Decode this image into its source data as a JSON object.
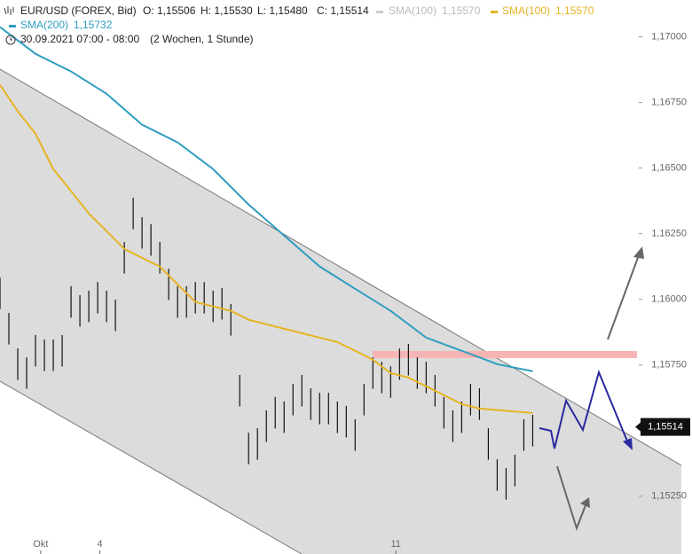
{
  "header": {
    "symbol": "EUR/USD (FOREX, Bid)",
    "ohlc": [
      "O: 1,15506",
      "H: 1,15530",
      "L: 1,15480",
      "C: 1,15514"
    ],
    "inactive_legend": {
      "name": "SMA(100)",
      "value": "1,15570"
    },
    "period": "30.09.2021 07:00 - 08:00",
    "span": "(2 Wochen, 1 Stunde)"
  },
  "chart_data": {
    "type": "ohlc",
    "x": [
      -16.5,
      -12.9,
      -9.3,
      -5.7,
      -2.1,
      1.5,
      5.1,
      8.7,
      12.3,
      15.9,
      19.5,
      23.1,
      26.7,
      30.3,
      33.9,
      37.5,
      41.1,
      44.7,
      48.3,
      51.9,
      55.5,
      59.1,
      62.7,
      66.3,
      69.9,
      73.5,
      77.1,
      80.7,
      84.3,
      87.9,
      91.5,
      95.1,
      98.7,
      102.3,
      105.9,
      109.5,
      113.1,
      116.7,
      120.3,
      123.9,
      127.5,
      131.1,
      134.7,
      138.3,
      141.9,
      145.5,
      149.1,
      152.7,
      156.3,
      159.9,
      163.5,
      167.1,
      170.7,
      174.3,
      177.9,
      181.5,
      185.1,
      188.7,
      192.3,
      195.9,
      199.5
    ],
    "high": [
      1.16083,
      1.15948,
      1.15813,
      1.15779,
      1.15864,
      1.15847,
      1.15847,
      1.15864,
      1.1605,
      1.16016,
      1.16033,
      1.16066,
      1.16033,
      1.15999,
      1.16218,
      1.16387,
      1.16313,
      1.16286,
      1.16218,
      1.16117,
      1.1605,
      1.1605,
      1.16066,
      1.16066,
      1.16033,
      1.16043,
      1.15982,
      1.15712,
      1.15492,
      1.15509,
      1.15577,
      1.15628,
      1.15611,
      1.15678,
      1.15712,
      1.15661,
      1.15644,
      1.15644,
      1.15611,
      1.15594,
      1.15543,
      1.15678,
      1.15779,
      1.15762,
      1.15745,
      1.15813,
      1.1583,
      1.15779,
      1.15762,
      1.15712,
      1.15628,
      1.15577,
      1.15611,
      1.15678,
      1.15661,
      1.15509,
      1.15391,
      1.15357,
      1.15408,
      1.15543,
      1.1556
    ],
    "low": [
      1.15963,
      1.15828,
      1.15693,
      1.15659,
      1.15744,
      1.15727,
      1.15727,
      1.15744,
      1.1593,
      1.15896,
      1.15913,
      1.15946,
      1.15913,
      1.15879,
      1.16098,
      1.16267,
      1.16193,
      1.16166,
      1.16098,
      1.15997,
      1.1593,
      1.1593,
      1.15946,
      1.15946,
      1.15913,
      1.15923,
      1.15862,
      1.15592,
      1.15372,
      1.15389,
      1.15457,
      1.15508,
      1.15491,
      1.15558,
      1.15592,
      1.15541,
      1.15524,
      1.15524,
      1.15491,
      1.15474,
      1.15423,
      1.15558,
      1.15659,
      1.15642,
      1.15625,
      1.15693,
      1.1571,
      1.15659,
      1.15642,
      1.15592,
      1.15508,
      1.15457,
      1.15491,
      1.15558,
      1.15541,
      1.15389,
      1.15271,
      1.15237,
      1.15288,
      1.15423,
      1.1544
    ],
    "bar_color": "#111111",
    "series": [
      {
        "name": "SMA(100)",
        "color": "#e6b422",
        "last_label": "1,15570",
        "x": [
          -16.5,
          -9.3,
          -2.1,
          5.1,
          12.3,
          19.5,
          26.7,
          33.9,
          41.1,
          48.3,
          55.5,
          62.7,
          69.9,
          77.1,
          84.3,
          91.5,
          98.7,
          105.9,
          113.1,
          120.3,
          127.5,
          134.7,
          141.9,
          149.1,
          156.3,
          163.5,
          170.7,
          177.9,
          185.1,
          199.5
        ],
        "values": [
          1.16817,
          1.16716,
          1.16631,
          1.16496,
          1.16412,
          1.16327,
          1.1626,
          1.16192,
          1.16158,
          1.16125,
          1.16057,
          1.1599,
          1.15973,
          1.15956,
          1.15922,
          1.15905,
          1.15888,
          1.15871,
          1.15854,
          1.15837,
          1.15804,
          1.1577,
          1.15719,
          1.15702,
          1.15669,
          1.15635,
          1.15601,
          1.15584,
          1.15578,
          1.15567
        ]
      },
      {
        "name": "SMA(200)",
        "color": "#2e9ec0",
        "last_label": "1,15732",
        "x": [
          -16.5,
          -2.1,
          12.3,
          26.7,
          41.1,
          55.5,
          69.9,
          84.3,
          98.7,
          113.1,
          127.5,
          141.9,
          156.3,
          170.7,
          185.1,
          199.5
        ],
        "values": [
          1.17037,
          1.16935,
          1.16868,
          1.16783,
          1.16665,
          1.16598,
          1.16496,
          1.16361,
          1.16243,
          1.16125,
          1.1604,
          1.15956,
          1.15854,
          1.15804,
          1.15753,
          1.15726
        ]
      }
    ],
    "last_price": {
      "value": 1.15514,
      "label": "1,15514"
    },
    "xlim": [
      -16.5,
      242.5
    ],
    "ylim": [
      1.1503,
      1.1714
    ],
    "xticks": [
      {
        "value": 0,
        "label": "Okt"
      },
      {
        "value": 24,
        "label": "4"
      },
      {
        "value": 144,
        "label": "11"
      }
    ],
    "yticks": [
      {
        "value": 1.17,
        "label": "1,17000"
      },
      {
        "value": 1.1675,
        "label": "1,16750"
      },
      {
        "value": 1.165,
        "label": "1,16500"
      },
      {
        "value": 1.1625,
        "label": "1,16250"
      },
      {
        "value": 1.16,
        "label": "1,16000"
      },
      {
        "value": 1.1575,
        "label": "1,15750"
      },
      {
        "value": 1.1525,
        "label": "1,15250"
      }
    ],
    "grid": false
  }
}
